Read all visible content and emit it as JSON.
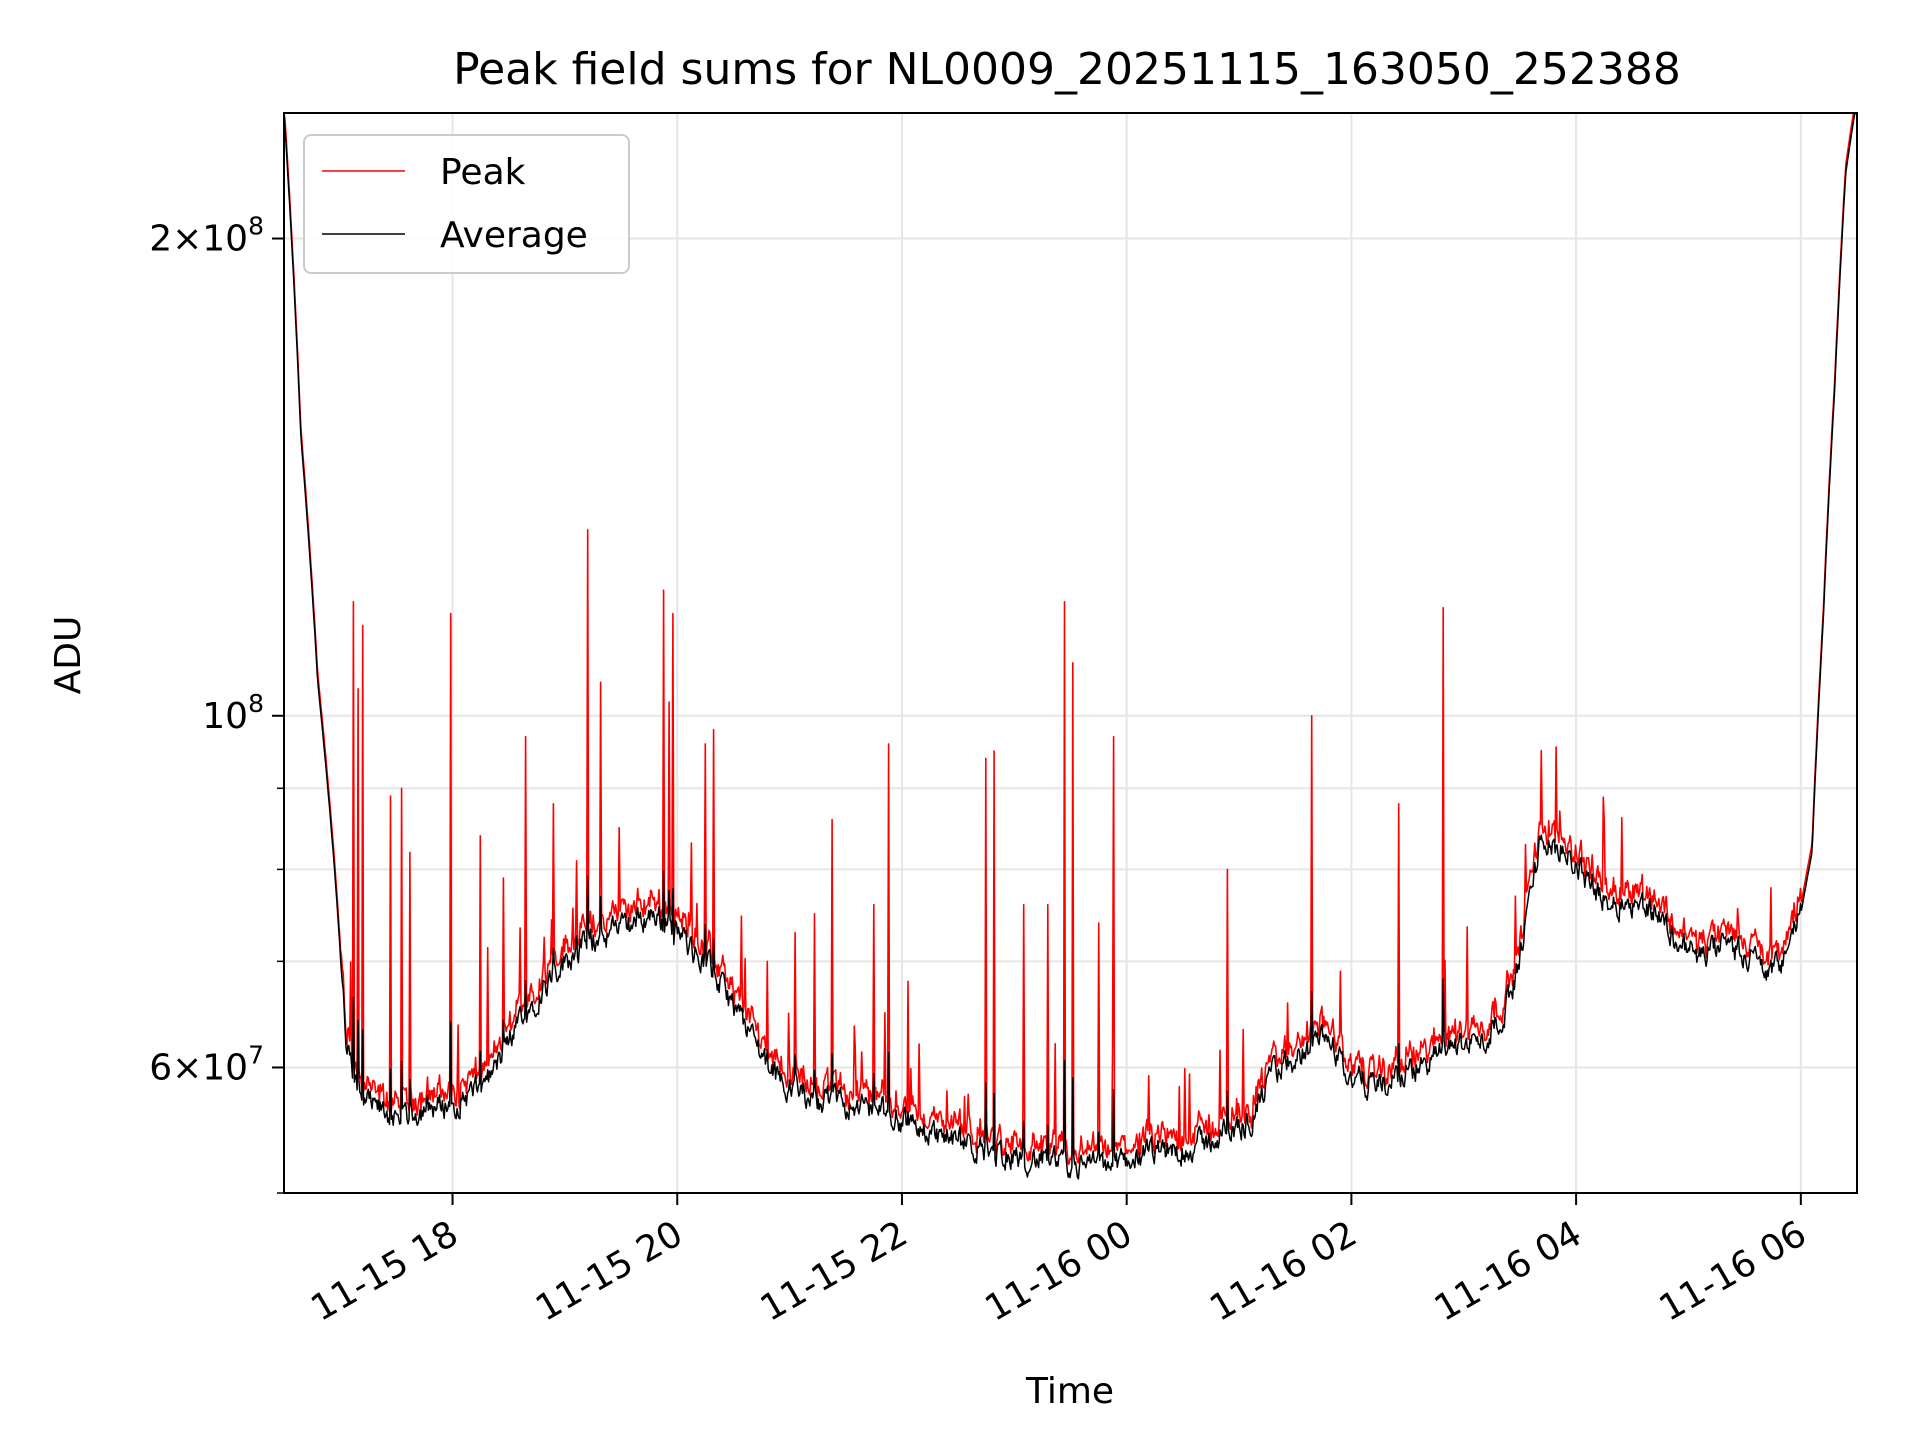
{
  "chart_data": {
    "type": "line",
    "title": "Peak field sums for NL0009_20251115_163050_252388",
    "xlabel": "Time",
    "ylabel": "ADU",
    "yscale": "log",
    "ylim": [
      50000000,
      240000000
    ],
    "xlim_hours": [
      16.5,
      30.5
    ],
    "grid": true,
    "legend_placement": "top-left",
    "x_ticks": [
      {
        "hours": 18,
        "label": "11-15 18"
      },
      {
        "hours": 20,
        "label": "11-15 20"
      },
      {
        "hours": 22,
        "label": "11-15 22"
      },
      {
        "hours": 24,
        "label": "11-16 00"
      },
      {
        "hours": 26,
        "label": "11-16 02"
      },
      {
        "hours": 28,
        "label": "11-16 04"
      },
      {
        "hours": 30,
        "label": "11-16 06"
      }
    ],
    "y_major_ticks": [
      {
        "value": 60000000,
        "base": "6",
        "exp": "7"
      },
      {
        "value": 100000000,
        "base": "",
        "exp": "8"
      },
      {
        "value": 200000000,
        "base": "2",
        "exp": "8"
      }
    ],
    "y_minor_ticks": [
      50000000,
      70000000,
      80000000,
      90000000
    ],
    "baseline_hours": [
      16.5,
      16.65,
      16.8,
      16.95,
      17.05,
      17.15,
      17.3,
      17.5,
      17.75,
      18.0,
      18.3,
      18.6,
      18.9,
      19.2,
      19.5,
      19.8,
      20.0,
      20.3,
      20.6,
      20.9,
      21.2,
      21.5,
      21.8,
      22.0,
      22.3,
      22.6,
      22.9,
      23.2,
      23.5,
      23.8,
      24.0,
      24.3,
      24.6,
      24.9,
      25.1,
      25.3,
      25.6,
      25.8,
      26.0,
      26.3,
      26.6,
      26.9,
      27.2,
      27.4,
      27.5,
      27.6,
      27.7,
      27.9,
      28.1,
      28.3,
      28.5,
      28.7,
      28.9,
      29.1,
      29.3,
      29.5,
      29.7,
      29.8,
      29.9,
      30.0,
      30.1,
      30.2,
      30.3,
      30.4,
      30.5
    ],
    "baseline_adu": [
      240000000,
      150000000,
      105000000,
      80000000,
      62000000,
      58000000,
      56500000,
      56000000,
      56500000,
      57000000,
      58500000,
      64000000,
      69000000,
      72000000,
      73500000,
      75000000,
      73000000,
      69000000,
      64000000,
      59000000,
      57500000,
      57000000,
      56500000,
      55500000,
      54500000,
      53500000,
      53000000,
      52500000,
      52000000,
      52000000,
      52500000,
      53000000,
      53500000,
      54500000,
      55500000,
      59500000,
      61500000,
      62500000,
      59000000,
      58500000,
      60000000,
      62000000,
      62500000,
      66000000,
      70000000,
      78000000,
      84000000,
      82000000,
      79000000,
      76000000,
      76500000,
      75500000,
      72000000,
      70500000,
      71500000,
      71000000,
      69000000,
      69500000,
      72000000,
      75000000,
      82000000,
      115000000,
      160000000,
      220000000,
      245000000
    ],
    "spikes": [
      {
        "hours": 17.12,
        "adu": 118000000
      },
      {
        "hours": 17.16,
        "adu": 104000000
      },
      {
        "hours": 17.2,
        "adu": 114000000
      },
      {
        "hours": 17.45,
        "adu": 89000000
      },
      {
        "hours": 17.55,
        "adu": 90000000
      },
      {
        "hours": 17.62,
        "adu": 82000000
      },
      {
        "hours": 17.98,
        "adu": 116000000
      },
      {
        "hours": 18.25,
        "adu": 84000000
      },
      {
        "hours": 18.45,
        "adu": 79000000
      },
      {
        "hours": 18.65,
        "adu": 97000000
      },
      {
        "hours": 18.9,
        "adu": 88000000
      },
      {
        "hours": 19.1,
        "adu": 81000000
      },
      {
        "hours": 19.2,
        "adu": 131000000
      },
      {
        "hours": 19.32,
        "adu": 105000000
      },
      {
        "hours": 19.48,
        "adu": 85000000
      },
      {
        "hours": 19.88,
        "adu": 120000000
      },
      {
        "hours": 19.93,
        "adu": 102000000
      },
      {
        "hours": 19.96,
        "adu": 116000000
      },
      {
        "hours": 20.25,
        "adu": 96000000
      },
      {
        "hours": 20.32,
        "adu": 98000000
      },
      {
        "hours": 20.8,
        "adu": 70000000
      },
      {
        "hours": 21.05,
        "adu": 73000000
      },
      {
        "hours": 21.22,
        "adu": 75000000
      },
      {
        "hours": 21.38,
        "adu": 86000000
      },
      {
        "hours": 21.75,
        "adu": 76000000
      },
      {
        "hours": 21.88,
        "adu": 96000000
      },
      {
        "hours": 22.05,
        "adu": 68000000
      },
      {
        "hours": 22.75,
        "adu": 94000000
      },
      {
        "hours": 22.82,
        "adu": 95000000
      },
      {
        "hours": 23.08,
        "adu": 76000000
      },
      {
        "hours": 23.3,
        "adu": 76000000
      },
      {
        "hours": 23.45,
        "adu": 118000000
      },
      {
        "hours": 23.52,
        "adu": 108000000
      },
      {
        "hours": 23.75,
        "adu": 74000000
      },
      {
        "hours": 23.88,
        "adu": 97000000
      },
      {
        "hours": 24.9,
        "adu": 80000000
      },
      {
        "hours": 25.65,
        "adu": 100000000
      },
      {
        "hours": 25.9,
        "adu": 69000000
      },
      {
        "hours": 26.42,
        "adu": 88000000
      },
      {
        "hours": 26.82,
        "adu": 117000000
      }
    ]
  },
  "legend": [
    {
      "label": "Peak",
      "color": "#ff0000"
    },
    {
      "label": "Average",
      "color": "#000000"
    }
  ]
}
